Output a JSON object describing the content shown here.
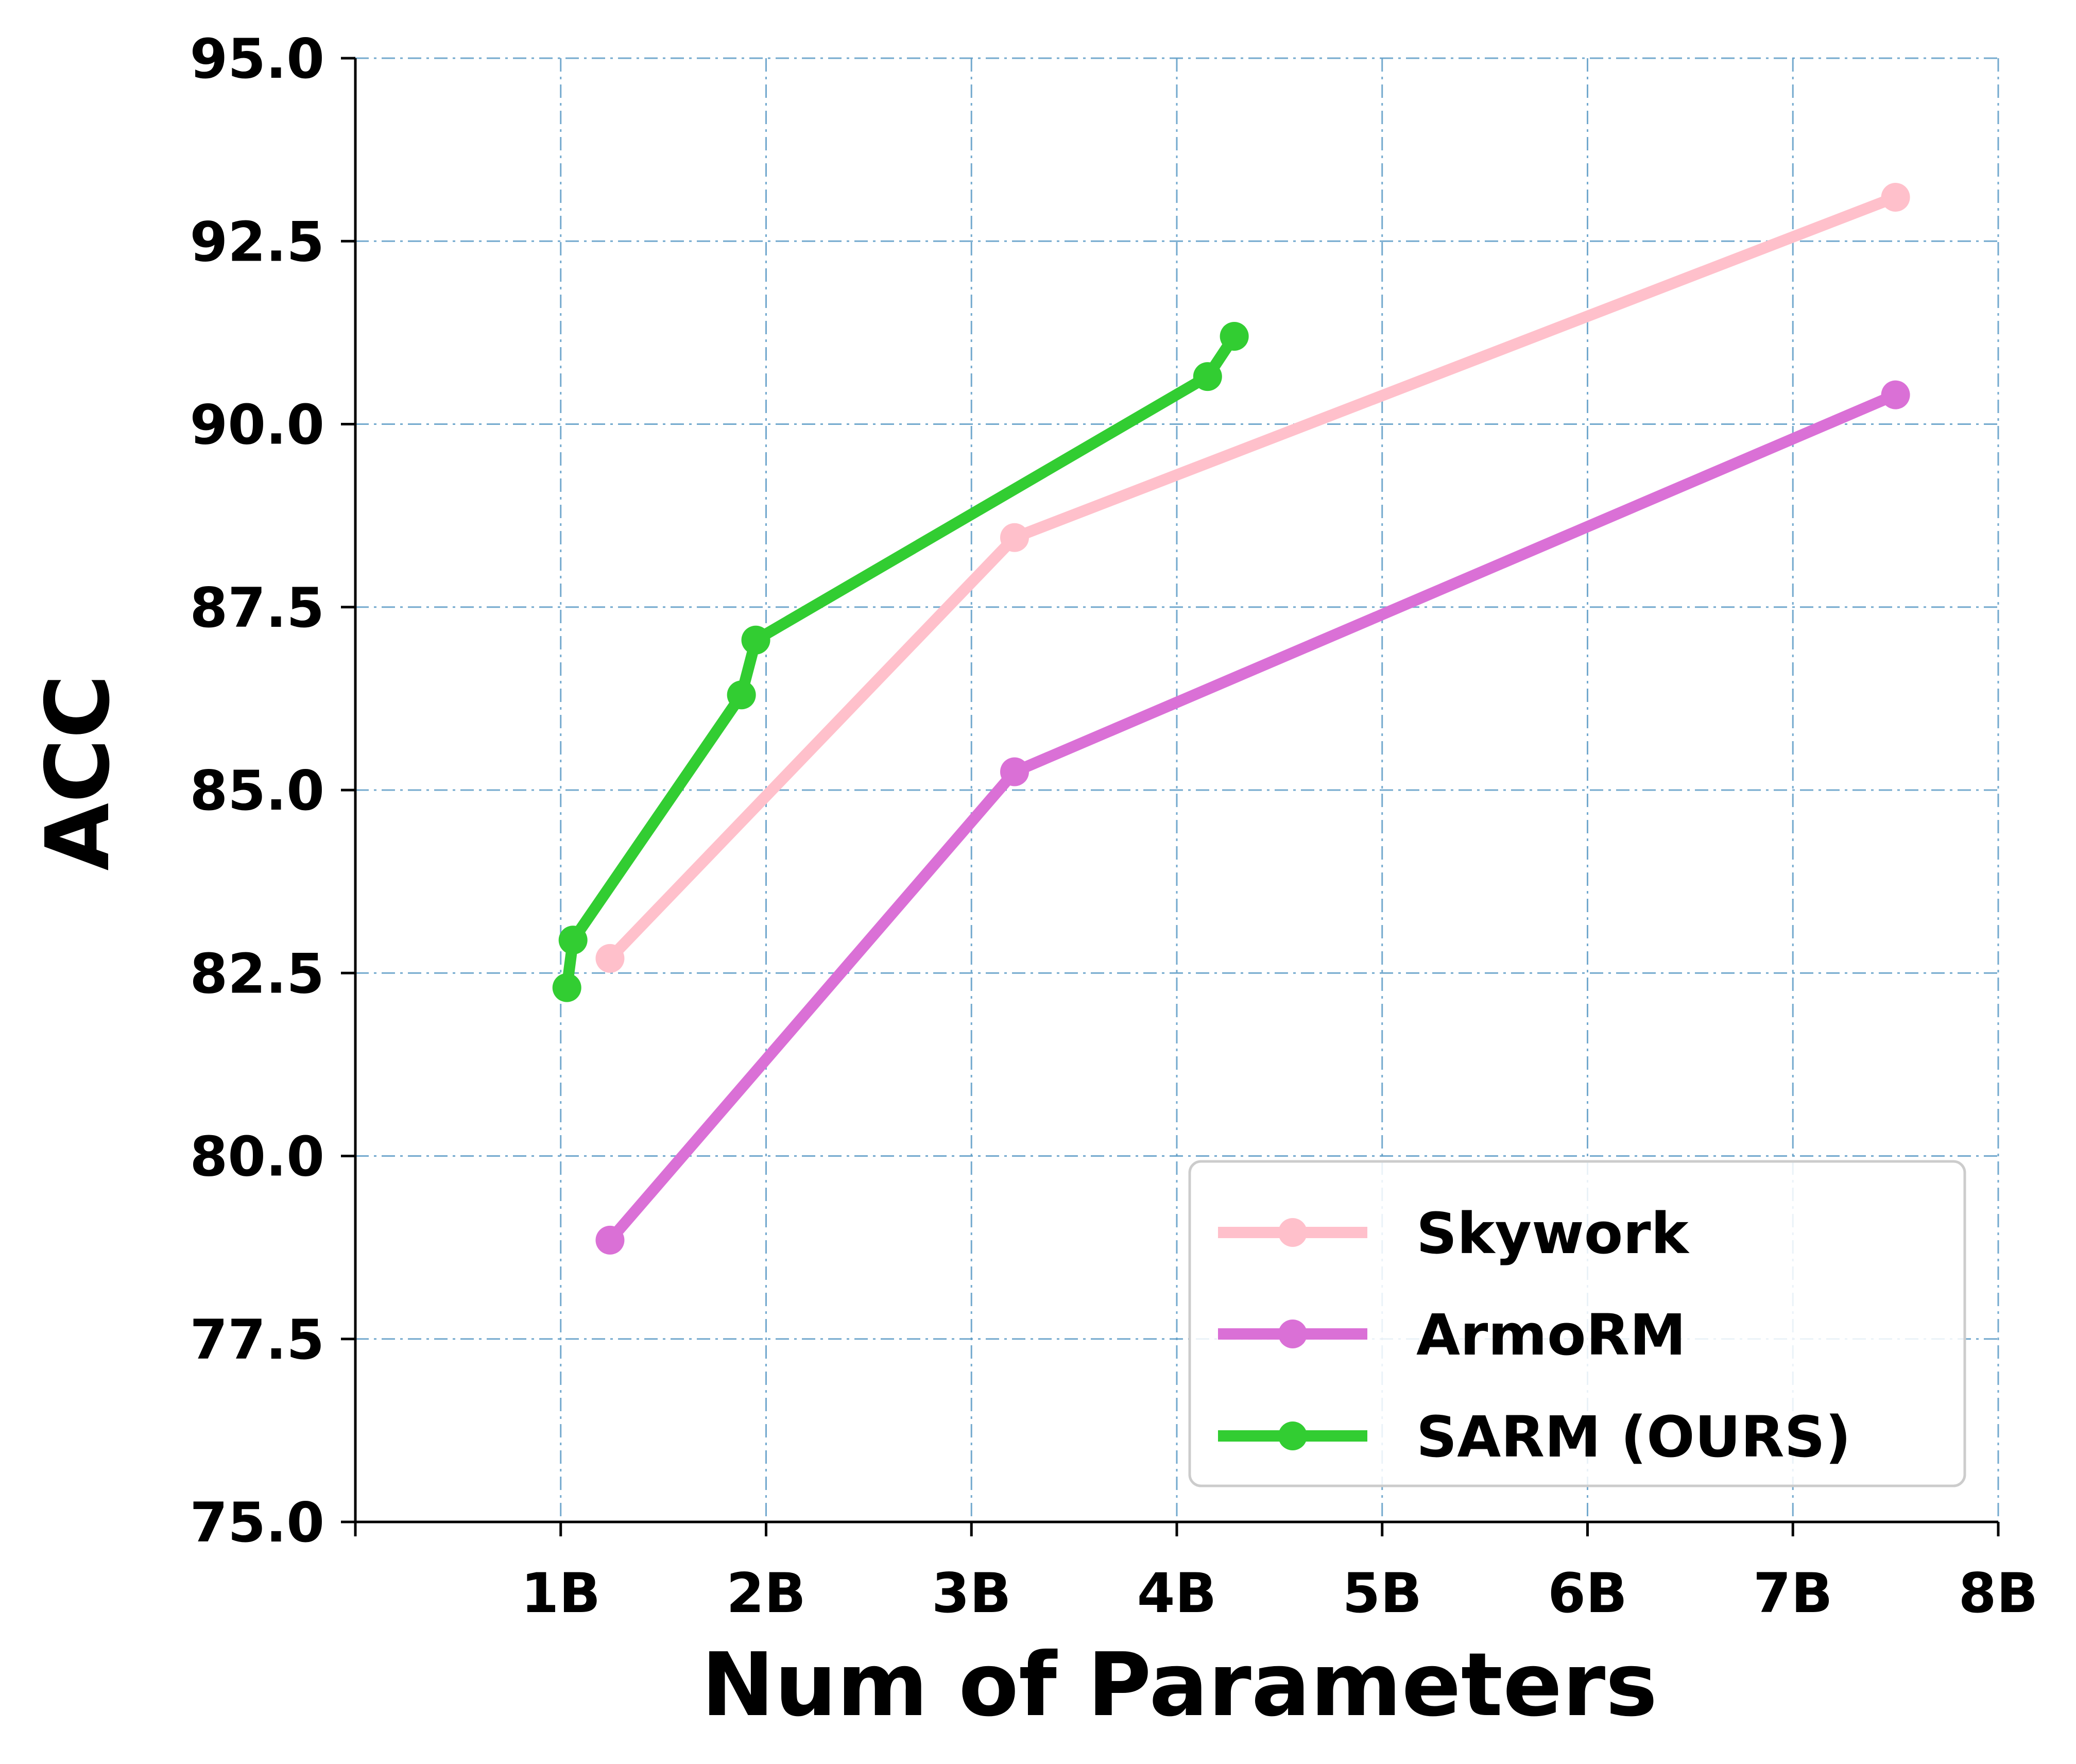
{
  "chart_data": {
    "type": "line",
    "title": "",
    "xlabel": "Num of Parameters",
    "ylabel": "ACC",
    "xlim": [
      0,
      8
    ],
    "ylim": [
      75.0,
      95.0
    ],
    "x_ticks": [
      1,
      2,
      3,
      4,
      5,
      6,
      7,
      8
    ],
    "x_tick_labels": [
      "1B",
      "2B",
      "3B",
      "4B",
      "5B",
      "6B",
      "7B",
      "8B"
    ],
    "y_ticks": [
      75.0,
      77.5,
      80.0,
      82.5,
      85.0,
      87.5,
      90.0,
      92.5,
      95.0
    ],
    "y_tick_labels": [
      "75.0",
      "77.5",
      "80.0",
      "82.5",
      "85.0",
      "87.5",
      "90.0",
      "92.5",
      "95.0"
    ],
    "grid": true,
    "legend_position": "bottom-right",
    "series": [
      {
        "name": "Skywork",
        "color": "#ffc0cb",
        "points": [
          {
            "x": 1.24,
            "y": 82.7
          },
          {
            "x": 3.21,
            "y": 88.45
          },
          {
            "x": 7.5,
            "y": 93.1
          }
        ]
      },
      {
        "name": "ArmoRM",
        "color": "#da70d6",
        "points": [
          {
            "x": 1.24,
            "y": 78.85
          },
          {
            "x": 3.21,
            "y": 85.25
          },
          {
            "x": 7.5,
            "y": 90.4
          }
        ]
      },
      {
        "name": "SARM (OURS)",
        "color": "#32cd32",
        "points": [
          {
            "x": 1.03,
            "y": 82.3
          },
          {
            "x": 1.06,
            "y": 82.95
          },
          {
            "x": 1.88,
            "y": 86.3
          },
          {
            "x": 1.95,
            "y": 87.05
          },
          {
            "x": 4.15,
            "y": 90.65
          },
          {
            "x": 4.28,
            "y": 91.2
          }
        ]
      }
    ]
  }
}
